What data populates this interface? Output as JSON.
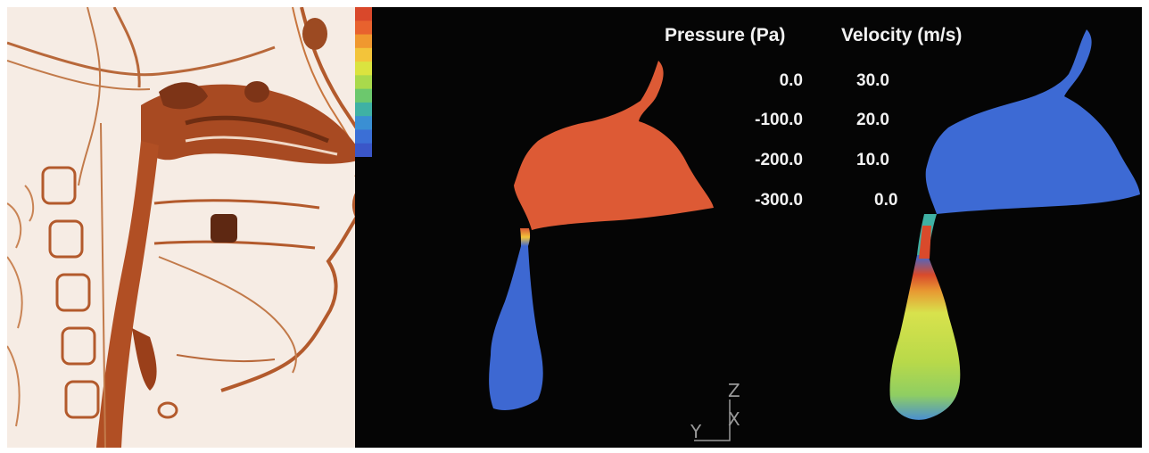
{
  "legend": {
    "pressure_title": "Pressure (Pa)",
    "velocity_title": "Velocity (m/s)",
    "pressure_ticks": [
      "0.0",
      "-100.0",
      "-200.0",
      "-300.0"
    ],
    "velocity_ticks": [
      "30.0",
      "20.0",
      "10.0",
      "0.0"
    ],
    "colormap": [
      "#d9482b",
      "#e8622e",
      "#f0982f",
      "#f3c43a",
      "#dbe33f",
      "#a9d94c",
      "#6cc86d",
      "#3fb1a4",
      "#3a8fd3",
      "#3b6fd6",
      "#3a56c8"
    ]
  },
  "axes": {
    "z": "Z",
    "y": "Y",
    "x": "X"
  },
  "colors": {
    "pressure_airway": "#dd5a35",
    "low_pressure_airway": "#3d68d2",
    "velocity_airway": "#3d6ad4",
    "velocity_jet": "#d8e24c",
    "velocity_peak": "#d94a2b",
    "ct_tissue": "#b4582a",
    "ct_background": "#f6ece4"
  }
}
